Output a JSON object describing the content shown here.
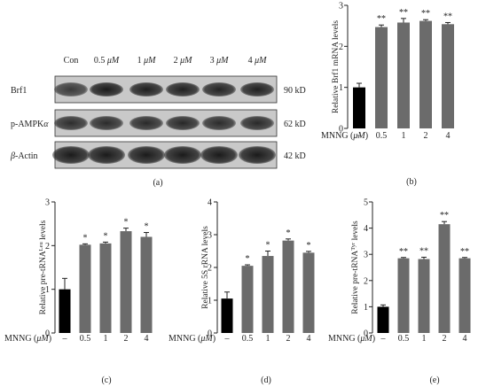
{
  "blot": {
    "lanes": [
      "Con",
      "0.5 μM",
      "1 μM",
      "2 μM",
      "3 μM",
      "4 μM"
    ],
    "rows": [
      {
        "label": "Brf1",
        "size": "90 kD",
        "intensities": [
          0.78,
          0.95,
          0.93,
          0.92,
          0.9,
          0.92
        ]
      },
      {
        "label": "p-AMPKα",
        "size": "62 kD",
        "intensities": [
          0.85,
          0.86,
          0.87,
          0.88,
          0.86,
          0.87
        ]
      },
      {
        "label": "β-Actin",
        "size": "42 kD",
        "intensities": [
          0.95,
          0.95,
          0.95,
          0.95,
          0.95,
          0.95
        ]
      }
    ],
    "caption": "(a)"
  },
  "chart_data": [
    {
      "id": "b",
      "type": "bar",
      "ylabel": "Relative Brf1 mRNA levels",
      "xlabel": "MNNG (μM)",
      "categories": [
        "–",
        "0.5",
        "1",
        "2",
        "4"
      ],
      "values": [
        1.0,
        2.47,
        2.58,
        2.62,
        2.54
      ],
      "errors": [
        0.1,
        0.05,
        0.1,
        0.03,
        0.04
      ],
      "significance": [
        "",
        "**",
        "**",
        "**",
        "**"
      ],
      "ylim": [
        0,
        3
      ],
      "yticks": [
        0,
        1,
        2,
        3
      ],
      "colors": [
        "#000000",
        "#6b6b6b",
        "#6b6b6b",
        "#6b6b6b",
        "#6b6b6b"
      ],
      "caption": "(b)"
    },
    {
      "id": "c",
      "type": "bar",
      "ylabel": "Relative pre-tRNA^Leu levels",
      "xlabel": "MNNG (μM)",
      "categories": [
        "–",
        "0.5",
        "1",
        "2",
        "4"
      ],
      "values": [
        1.0,
        2.02,
        2.05,
        2.33,
        2.2
      ],
      "errors": [
        0.25,
        0.02,
        0.03,
        0.07,
        0.1
      ],
      "significance": [
        "",
        "*",
        "*",
        "*",
        "*"
      ],
      "ylim": [
        0,
        3
      ],
      "yticks": [
        0,
        1,
        2,
        3
      ],
      "colors": [
        "#000000",
        "#6b6b6b",
        "#6b6b6b",
        "#6b6b6b",
        "#6b6b6b"
      ],
      "caption": "(c)"
    },
    {
      "id": "d",
      "type": "bar",
      "ylabel": "Relative 5S rRNA levels",
      "xlabel": "MNNG (μM)",
      "categories": [
        "–",
        "0.5",
        "1",
        "2",
        "4"
      ],
      "values": [
        1.05,
        2.05,
        2.35,
        2.82,
        2.45
      ],
      "errors": [
        0.2,
        0.03,
        0.15,
        0.05,
        0.04
      ],
      "significance": [
        "",
        "*",
        "*",
        "*",
        "*"
      ],
      "ylim": [
        0,
        4
      ],
      "yticks": [
        0,
        1,
        2,
        3,
        4
      ],
      "colors": [
        "#000000",
        "#6b6b6b",
        "#6b6b6b",
        "#6b6b6b",
        "#6b6b6b"
      ],
      "caption": "(d)"
    },
    {
      "id": "e",
      "type": "bar",
      "ylabel": "Relative pre-tRNA^Tyr levels",
      "xlabel": "MNNG (μM)",
      "categories": [
        "–",
        "0.5",
        "1",
        "2",
        "4"
      ],
      "values": [
        1.0,
        2.85,
        2.82,
        4.15,
        2.85
      ],
      "errors": [
        0.07,
        0.03,
        0.07,
        0.1,
        0.03
      ],
      "significance": [
        "",
        "**",
        "**",
        "**",
        "**"
      ],
      "ylim": [
        0,
        5
      ],
      "yticks": [
        0,
        1,
        2,
        3,
        4,
        5
      ],
      "colors": [
        "#000000",
        "#6b6b6b",
        "#6b6b6b",
        "#6b6b6b",
        "#6b6b6b"
      ],
      "caption": "(e)"
    }
  ]
}
